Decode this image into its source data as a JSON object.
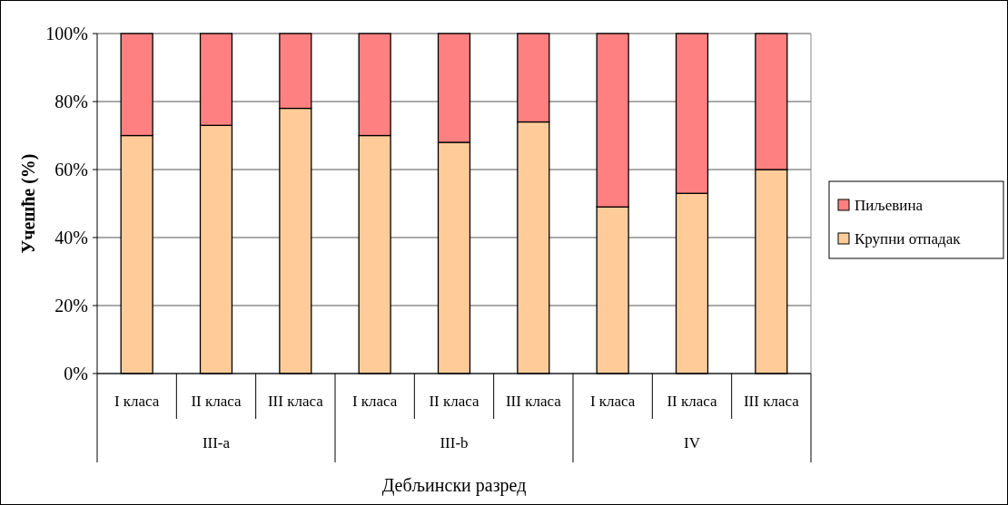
{
  "chart_data": {
    "type": "bar",
    "stacked": true,
    "xlabel": "Дебљински разред",
    "ylabel": "Учешће (%)",
    "categories": [
      "I класа",
      "II класа",
      "III класа",
      "I класа",
      "II класа",
      "III класа",
      "I класа",
      "II класа",
      "III класа"
    ],
    "annotations": [
      "III-a",
      "III-b",
      "IV"
    ],
    "series": [
      {
        "name": "Крупни отпадак",
        "color": "#ffcc99",
        "values": [
          70,
          73,
          78,
          70,
          68,
          74,
          49,
          53,
          60
        ]
      },
      {
        "name": "Пиљевина",
        "color": "#ff8080",
        "values": [
          30,
          27,
          22,
          30,
          32,
          26,
          51,
          47,
          40
        ]
      }
    ],
    "ylim": [
      0,
      100
    ],
    "yticks": [
      {
        "value": 0,
        "label": "0%"
      },
      {
        "value": 20,
        "label": "20%"
      },
      {
        "value": 40,
        "label": "40%"
      },
      {
        "value": 60,
        "label": "60%"
      },
      {
        "value": 80,
        "label": "80%"
      },
      {
        "value": 100,
        "label": "100%"
      }
    ],
    "grid": "y",
    "legend": "right"
  }
}
